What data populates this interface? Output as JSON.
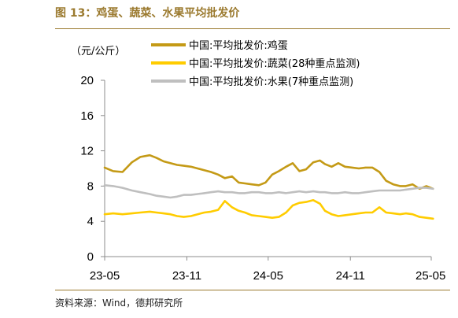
{
  "figure": {
    "title": "图 13：鸡蛋、蔬菜、水果平均批发价",
    "source": "资料来源：Wind，德邦研究所"
  },
  "chart_data": {
    "type": "line",
    "unit_label": "（元/公斤）",
    "xlabel": "",
    "ylabel": "",
    "ylim": [
      0,
      20
    ],
    "yticks": [
      0,
      4,
      8,
      12,
      16,
      20
    ],
    "xlim": [
      "2023-05",
      "2025-05"
    ],
    "xticks": [
      "23-05",
      "23-11",
      "24-05",
      "24-11",
      "25-05"
    ],
    "grid": false,
    "legend_position": "top-right",
    "colors": {
      "egg": "#C49A16",
      "vegetable": "#FFCC00",
      "fruit": "#BFBFBF"
    },
    "series": [
      {
        "key": "egg",
        "name": "中国:平均批发价:鸡蛋",
        "x": [
          "2023-05-01",
          "2023-05-20",
          "2023-06-10",
          "2023-07-01",
          "2023-07-20",
          "2023-08-10",
          "2023-08-25",
          "2023-09-10",
          "2023-09-25",
          "2023-10-10",
          "2023-10-25",
          "2023-11-10",
          "2023-11-25",
          "2023-12-10",
          "2023-12-25",
          "2024-01-10",
          "2024-01-25",
          "2024-02-10",
          "2024-02-25",
          "2024-03-10",
          "2024-03-25",
          "2024-04-10",
          "2024-04-25",
          "2024-05-10",
          "2024-05-25",
          "2024-06-10",
          "2024-06-25",
          "2024-07-10",
          "2024-07-25",
          "2024-08-10",
          "2024-08-25",
          "2024-09-05",
          "2024-09-20",
          "2024-10-05",
          "2024-10-20",
          "2024-11-05",
          "2024-11-20",
          "2024-12-05",
          "2024-12-20",
          "2025-01-05",
          "2025-01-20",
          "2025-02-05",
          "2025-02-20",
          "2025-03-05",
          "2025-03-20",
          "2025-04-05",
          "2025-04-20",
          "2025-05-05"
        ],
        "values": [
          10.1,
          9.7,
          9.6,
          10.7,
          11.3,
          11.5,
          11.2,
          10.8,
          10.6,
          10.4,
          10.3,
          10.2,
          10.0,
          9.8,
          9.6,
          9.3,
          8.9,
          9.1,
          8.4,
          8.3,
          8.2,
          8.1,
          8.4,
          9.3,
          9.7,
          10.2,
          10.6,
          9.7,
          9.9,
          10.7,
          10.9,
          10.5,
          10.2,
          10.6,
          10.2,
          10.1,
          10.0,
          10.1,
          10.1,
          9.6,
          8.6,
          8.2,
          8.0,
          8.0,
          8.2,
          7.7,
          8.0,
          7.7
        ]
      },
      {
        "key": "vegetable",
        "name": "中国:平均批发价:蔬菜(28种重点监测)",
        "x": [
          "2023-05-01",
          "2023-05-20",
          "2023-06-10",
          "2023-07-01",
          "2023-07-20",
          "2023-08-10",
          "2023-08-25",
          "2023-09-10",
          "2023-09-25",
          "2023-10-10",
          "2023-10-25",
          "2023-11-10",
          "2023-11-25",
          "2023-12-10",
          "2023-12-25",
          "2024-01-10",
          "2024-01-25",
          "2024-02-10",
          "2024-02-25",
          "2024-03-10",
          "2024-03-25",
          "2024-04-10",
          "2024-04-25",
          "2024-05-10",
          "2024-05-25",
          "2024-06-10",
          "2024-06-25",
          "2024-07-10",
          "2024-07-25",
          "2024-08-10",
          "2024-08-25",
          "2024-09-05",
          "2024-09-20",
          "2024-10-05",
          "2024-10-20",
          "2024-11-05",
          "2024-11-20",
          "2024-12-05",
          "2024-12-20",
          "2025-01-05",
          "2025-01-20",
          "2025-02-05",
          "2025-02-20",
          "2025-03-05",
          "2025-03-20",
          "2025-04-05",
          "2025-04-20",
          "2025-05-05"
        ],
        "values": [
          4.8,
          4.9,
          4.8,
          4.9,
          5.0,
          5.1,
          5.0,
          4.9,
          4.8,
          4.6,
          4.5,
          4.6,
          4.8,
          5.0,
          5.1,
          5.3,
          6.3,
          5.6,
          5.2,
          5.0,
          4.7,
          4.6,
          4.5,
          4.4,
          4.5,
          5.0,
          5.8,
          6.1,
          6.2,
          6.4,
          6.0,
          5.2,
          4.8,
          4.6,
          4.7,
          4.8,
          4.9,
          5.0,
          5.0,
          5.6,
          5.0,
          4.9,
          4.8,
          4.9,
          4.8,
          4.5,
          4.4,
          4.3
        ]
      },
      {
        "key": "fruit",
        "name": "中国:平均批发价:水果(7种重点监测)",
        "x": [
          "2023-05-01",
          "2023-05-20",
          "2023-06-10",
          "2023-07-01",
          "2023-07-20",
          "2023-08-10",
          "2023-08-25",
          "2023-09-10",
          "2023-09-25",
          "2023-10-10",
          "2023-10-25",
          "2023-11-10",
          "2023-11-25",
          "2023-12-10",
          "2023-12-25",
          "2024-01-10",
          "2024-01-25",
          "2024-02-10",
          "2024-02-25",
          "2024-03-10",
          "2024-03-25",
          "2024-04-10",
          "2024-04-25",
          "2024-05-10",
          "2024-05-25",
          "2024-06-10",
          "2024-06-25",
          "2024-07-10",
          "2024-07-25",
          "2024-08-10",
          "2024-08-25",
          "2024-09-05",
          "2024-09-20",
          "2024-10-05",
          "2024-10-20",
          "2024-11-05",
          "2024-11-20",
          "2024-12-05",
          "2024-12-20",
          "2025-01-05",
          "2025-01-20",
          "2025-02-05",
          "2025-02-20",
          "2025-03-05",
          "2025-03-20",
          "2025-04-05",
          "2025-04-20",
          "2025-05-05"
        ],
        "values": [
          8.1,
          8.0,
          7.8,
          7.5,
          7.3,
          7.1,
          6.9,
          6.8,
          6.7,
          6.8,
          7.0,
          7.0,
          7.1,
          7.2,
          7.3,
          7.4,
          7.3,
          7.3,
          7.2,
          7.2,
          7.3,
          7.3,
          7.2,
          7.2,
          7.3,
          7.2,
          7.3,
          7.4,
          7.3,
          7.4,
          7.3,
          7.3,
          7.2,
          7.2,
          7.3,
          7.2,
          7.2,
          7.3,
          7.4,
          7.5,
          7.5,
          7.5,
          7.5,
          7.6,
          7.7,
          7.8,
          7.8,
          7.7
        ]
      }
    ]
  }
}
